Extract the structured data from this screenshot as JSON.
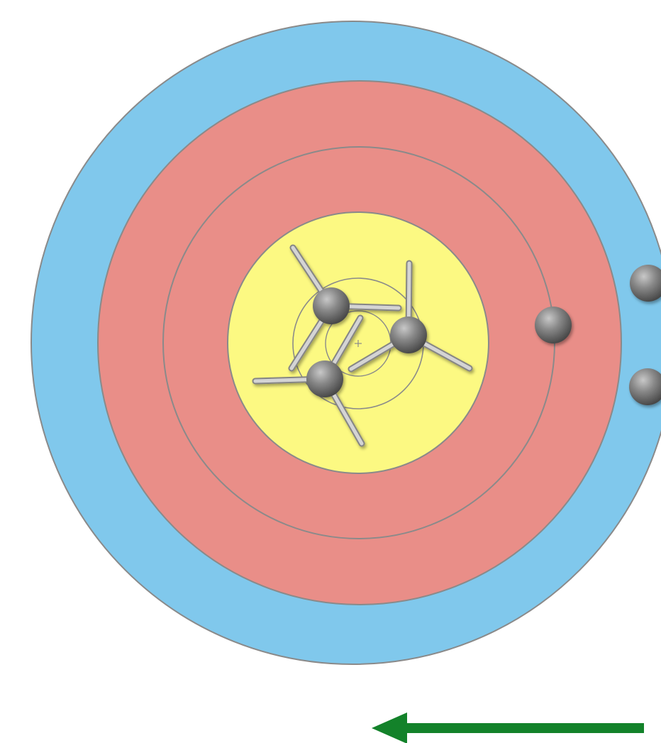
{
  "target": {
    "rings": [
      {
        "name": "blue",
        "color": "#80C8EC"
      },
      {
        "name": "red",
        "color": "#E98E88"
      },
      {
        "name": "yellow",
        "color": "#FCF982"
      }
    ],
    "ring_line_color": "#8A8A8A"
  },
  "arrows": {
    "head_color": "#777777",
    "fletching_color": "#A9A9A9",
    "count_with_fletching": 3,
    "count_heads_only": 3
  },
  "direction_arrow": {
    "color": "#13822A",
    "direction": "left"
  }
}
